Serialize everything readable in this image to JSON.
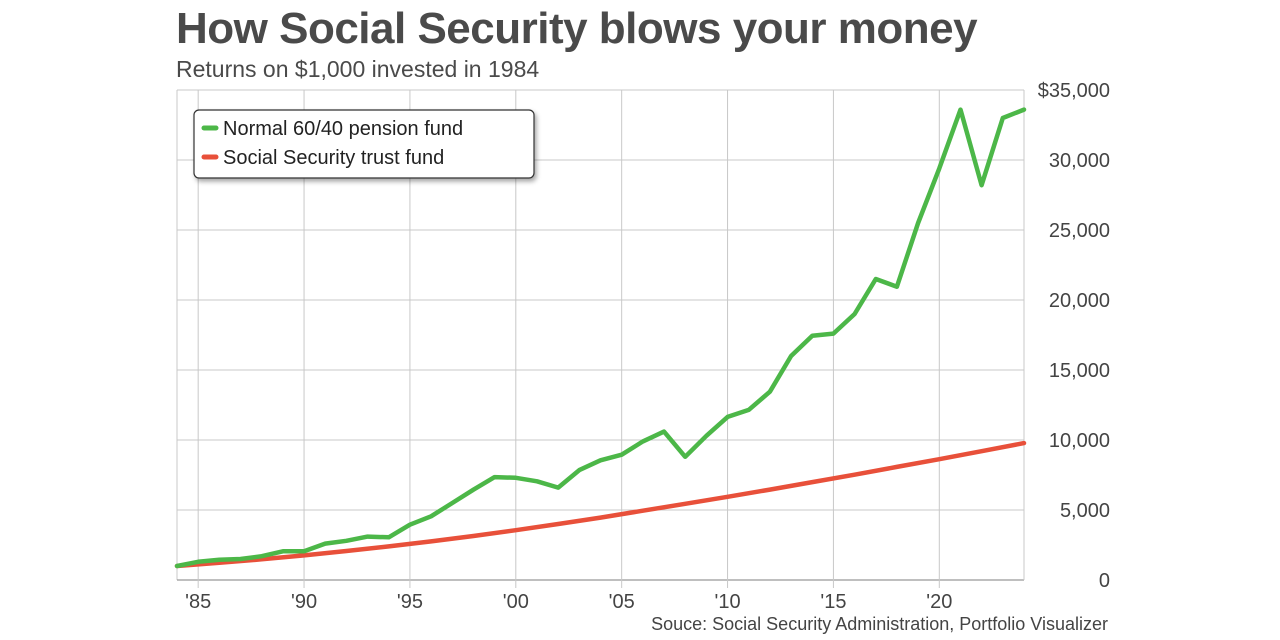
{
  "header": {
    "title": "How Social Security blows your money",
    "subtitle": "Returns on $1,000 invested in 1984"
  },
  "footer": {
    "source": "Souce: Social Security Administration, Portfolio Visualizer"
  },
  "colors": {
    "pension": "#4cb748",
    "social_security": "#e8503a",
    "grid": "#c8c8c8"
  },
  "chart_data": {
    "type": "line",
    "title": "How Social Security blows your money",
    "subtitle": "Returns on $1,000 invested in 1984",
    "xlim": [
      1984,
      2024
    ],
    "ylim": [
      0,
      35000
    ],
    "grid": true,
    "y_axis_position": "right",
    "legend_placement": "top-left",
    "x_ticks": [
      1985,
      1990,
      1995,
      2000,
      2005,
      2010,
      2015,
      2020
    ],
    "x_tick_labels": [
      "'85",
      "'90",
      "'95",
      "'00",
      "'05",
      "'10",
      "'15",
      "'20"
    ],
    "y_ticks": [
      0,
      5000,
      10000,
      15000,
      20000,
      25000,
      30000,
      35000
    ],
    "y_tick_labels": [
      "0",
      "5,000",
      "10,000",
      "15,000",
      "20,000",
      "25,000",
      "30,000",
      "$35,000"
    ],
    "series": [
      {
        "name": "Normal 60/40 pension fund",
        "color": "#4cb748",
        "x": [
          1984,
          1985,
          1986,
          1987,
          1988,
          1989,
          1990,
          1991,
          1992,
          1993,
          1994,
          1995,
          1996,
          1997,
          1998,
          1999,
          2000,
          2001,
          2002,
          2003,
          2004,
          2005,
          2006,
          2007,
          2008,
          2009,
          2010,
          2011,
          2012,
          2013,
          2014,
          2015,
          2016,
          2017,
          2018,
          2019,
          2020,
          2021,
          2022,
          2023,
          2024
        ],
        "values": [
          1000,
          1300,
          1450,
          1500,
          1700,
          2050,
          2050,
          2600,
          2800,
          3100,
          3050,
          3950,
          4550,
          5500,
          6450,
          7350,
          7300,
          7050,
          6600,
          7850,
          8550,
          8950,
          9900,
          10600,
          8800,
          10300,
          11650,
          12150,
          13450,
          16000,
          17450,
          17600,
          19000,
          21500,
          20950,
          25500,
          29400,
          33600,
          28200,
          33000,
          33600
        ]
      },
      {
        "name": "Social Security trust fund",
        "color": "#e8503a",
        "x": [
          1984,
          1986,
          1988,
          1990,
          1992,
          1994,
          1996,
          1998,
          2000,
          2002,
          2004,
          2006,
          2008,
          2010,
          2012,
          2014,
          2016,
          2018,
          2020,
          2022,
          2024
        ],
        "values": [
          1000,
          1230,
          1480,
          1760,
          2070,
          2400,
          2760,
          3140,
          3560,
          4000,
          4460,
          4950,
          5440,
          5940,
          6460,
          6990,
          7520,
          8080,
          8630,
          9200,
          9780
        ]
      }
    ]
  }
}
